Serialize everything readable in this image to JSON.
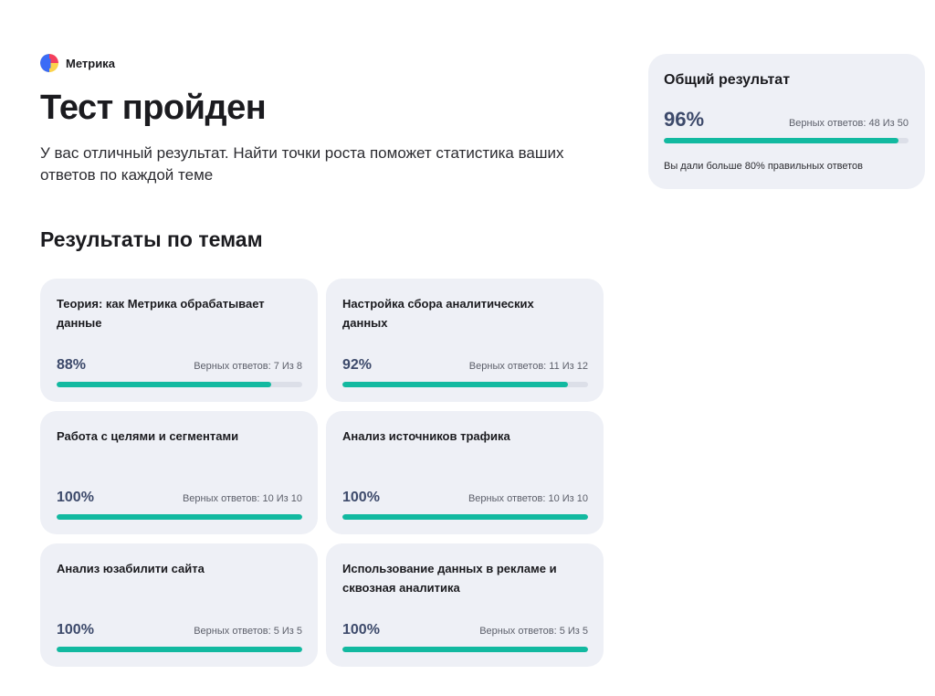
{
  "brand": {
    "name": "Метрика",
    "logo_icon": "metrika-logo-icon",
    "logo_colors": [
      "#3b6cf6",
      "#f43f5e",
      "#fcd34d"
    ]
  },
  "header": {
    "title": "Тест пройден",
    "subtitle": "У вас отличный результат. Найти точки роста поможет статистика ваших ответов по каждой теме"
  },
  "topics": {
    "heading": "Результаты по темам",
    "items": [
      {
        "title": "Теория: как Метрика обрабатывает данные",
        "percent": "88%",
        "counter": "Верных ответов: 7 Из 8",
        "progress": 0.875
      },
      {
        "title": "Настройка сбора аналитических данных",
        "percent": "92%",
        "counter": "Верных ответов: 11 Из 12",
        "progress": 0.9167
      },
      {
        "title": "Работа с целями и сегментами",
        "percent": "100%",
        "counter": "Верных ответов: 10 Из 10",
        "progress": 1
      },
      {
        "title": "Анализ источников трафика",
        "percent": "100%",
        "counter": "Верных ответов: 10 Из 10",
        "progress": 1
      },
      {
        "title": "Анализ юзабилити сайта",
        "percent": "100%",
        "counter": "Верных ответов: 5 Из 5",
        "progress": 1
      },
      {
        "title": "Использование данных в рекламе и сквозная аналитика",
        "percent": "100%",
        "counter": "Верных ответов: 5 Из 5",
        "progress": 1
      }
    ]
  },
  "summary": {
    "title": "Общий результат",
    "percent": "96%",
    "counter": "Верных ответов: 48 Из 50",
    "progress": 0.96,
    "note": "Вы дали больше 80% правильных ответов"
  },
  "colors": {
    "accent": "#12b9a0",
    "track": "#dcdfe8",
    "card_background": "#eef0f6",
    "percent_text": "#3d4a6b"
  }
}
